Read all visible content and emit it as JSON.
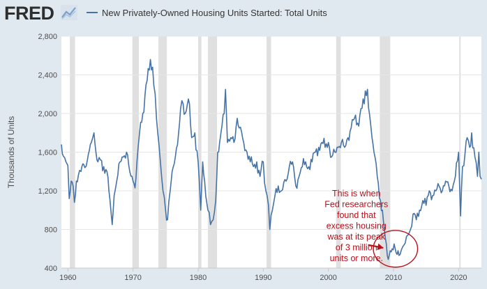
{
  "header": {
    "logo_text": "FRED",
    "legend_label": "New Privately-Owned Housing Units Started: Total Units"
  },
  "colors": {
    "series": "#4572a7",
    "recession": "#e0e0e0",
    "annotation": "#b8101a",
    "page_background": "#e1e9f0",
    "plot_background": "#ffffff"
  },
  "chart_data": {
    "type": "line",
    "title": "",
    "xlabel": "",
    "ylabel": "Thousands of Units",
    "xlim": [
      1959,
      2023.5
    ],
    "ylim": [
      400,
      2800
    ],
    "x_ticks": [
      1960,
      1970,
      1980,
      1990,
      2000,
      2010,
      2020
    ],
    "x_tick_labels": [
      "1960",
      "1970",
      "1980",
      "1990",
      "2000",
      "2010",
      "2020"
    ],
    "y_ticks": [
      400,
      800,
      1200,
      1600,
      2000,
      2400,
      2800
    ],
    "y_tick_labels": [
      "400",
      "800",
      "1,200",
      "1,600",
      "2,000",
      "2,400",
      "2,800"
    ],
    "grid": "horizontal",
    "legend_position": "top",
    "recessions": [
      [
        1960.3,
        1961.1
      ],
      [
        1969.9,
        1970.9
      ],
      [
        1973.9,
        1975.2
      ],
      [
        1980.0,
        1980.5
      ],
      [
        1981.5,
        1982.9
      ],
      [
        1990.5,
        1991.2
      ],
      [
        2001.2,
        2001.9
      ],
      [
        2007.9,
        2009.5
      ],
      [
        2020.1,
        2020.3
      ]
    ],
    "series": [
      {
        "name": "New Privately-Owned Housing Units Started: Total Units",
        "points": [
          [
            1959.0,
            1680
          ],
          [
            1959.3,
            1560
          ],
          [
            1959.7,
            1500
          ],
          [
            1960.0,
            1460
          ],
          [
            1960.2,
            1120
          ],
          [
            1960.5,
            1300
          ],
          [
            1960.8,
            1250
          ],
          [
            1961.0,
            1080
          ],
          [
            1961.3,
            1300
          ],
          [
            1961.6,
            1360
          ],
          [
            1962.0,
            1400
          ],
          [
            1962.3,
            1480
          ],
          [
            1962.6,
            1440
          ],
          [
            1963.0,
            1520
          ],
          [
            1963.3,
            1620
          ],
          [
            1963.6,
            1700
          ],
          [
            1964.0,
            1800
          ],
          [
            1964.3,
            1600
          ],
          [
            1964.6,
            1500
          ],
          [
            1965.0,
            1520
          ],
          [
            1965.5,
            1450
          ],
          [
            1966.0,
            1400
          ],
          [
            1966.3,
            1200
          ],
          [
            1966.6,
            1000
          ],
          [
            1966.8,
            850
          ],
          [
            1967.1,
            1150
          ],
          [
            1967.5,
            1300
          ],
          [
            1968.0,
            1500
          ],
          [
            1968.5,
            1550
          ],
          [
            1969.0,
            1600
          ],
          [
            1969.5,
            1400
          ],
          [
            1970.0,
            1300
          ],
          [
            1970.3,
            1230
          ],
          [
            1970.6,
            1500
          ],
          [
            1971.0,
            1800
          ],
          [
            1971.5,
            2000
          ],
          [
            1972.0,
            2300
          ],
          [
            1972.5,
            2450
          ],
          [
            1973.0,
            2480
          ],
          [
            1973.4,
            2200
          ],
          [
            1973.8,
            1800
          ],
          [
            1974.2,
            1500
          ],
          [
            1974.6,
            1200
          ],
          [
            1975.0,
            1000
          ],
          [
            1975.3,
            900
          ],
          [
            1975.7,
            1200
          ],
          [
            1976.0,
            1400
          ],
          [
            1976.5,
            1550
          ],
          [
            1977.0,
            1800
          ],
          [
            1977.3,
            2050
          ],
          [
            1977.7,
            2100
          ],
          [
            1978.0,
            2000
          ],
          [
            1978.5,
            2150
          ],
          [
            1979.0,
            1750
          ],
          [
            1979.5,
            1800
          ],
          [
            1980.0,
            1500
          ],
          [
            1980.4,
            1000
          ],
          [
            1980.7,
            1500
          ],
          [
            1981.0,
            1300
          ],
          [
            1981.5,
            1000
          ],
          [
            1981.9,
            850
          ],
          [
            1982.3,
            900
          ],
          [
            1982.7,
            1100
          ],
          [
            1983.0,
            1600
          ],
          [
            1983.3,
            1700
          ],
          [
            1983.5,
            1800
          ],
          [
            1984.0,
            2000
          ],
          [
            1984.2,
            2250
          ],
          [
            1984.5,
            1700
          ],
          [
            1985.0,
            1750
          ],
          [
            1985.5,
            1700
          ],
          [
            1986.0,
            1950
          ],
          [
            1986.3,
            1850
          ],
          [
            1986.7,
            1800
          ],
          [
            1987.0,
            1700
          ],
          [
            1987.5,
            1600
          ],
          [
            1988.0,
            1500
          ],
          [
            1988.5,
            1450
          ],
          [
            1989.0,
            1500
          ],
          [
            1989.5,
            1350
          ],
          [
            1990.0,
            1500
          ],
          [
            1990.4,
            1200
          ],
          [
            1990.8,
            1050
          ],
          [
            1991.0,
            800
          ],
          [
            1991.4,
            1000
          ],
          [
            1991.8,
            1150
          ],
          [
            1992.3,
            1250
          ],
          [
            1992.8,
            1200
          ],
          [
            1993.5,
            1300
          ],
          [
            1994.0,
            1450
          ],
          [
            1994.5,
            1500
          ],
          [
            1995.0,
            1250
          ],
          [
            1995.5,
            1350
          ],
          [
            1996.0,
            1450
          ],
          [
            1996.5,
            1500
          ],
          [
            1997.0,
            1450
          ],
          [
            1997.5,
            1500
          ],
          [
            1998.0,
            1600
          ],
          [
            1998.5,
            1650
          ],
          [
            1999.0,
            1700
          ],
          [
            1999.5,
            1650
          ],
          [
            2000.0,
            1700
          ],
          [
            2000.5,
            1550
          ],
          [
            2001.0,
            1600
          ],
          [
            2001.5,
            1650
          ],
          [
            2002.0,
            1700
          ],
          [
            2002.5,
            1650
          ],
          [
            2003.0,
            1750
          ],
          [
            2003.5,
            1850
          ],
          [
            2004.0,
            1950
          ],
          [
            2004.5,
            1900
          ],
          [
            2005.0,
            2050
          ],
          [
            2005.5,
            2100
          ],
          [
            2006.0,
            2250
          ],
          [
            2006.3,
            2000
          ],
          [
            2006.7,
            1750
          ],
          [
            2007.0,
            1600
          ],
          [
            2007.5,
            1350
          ],
          [
            2008.0,
            1100
          ],
          [
            2008.3,
            1000
          ],
          [
            2008.6,
            800
          ],
          [
            2008.9,
            650
          ],
          [
            2009.2,
            490
          ],
          [
            2009.5,
            580
          ],
          [
            2009.8,
            600
          ],
          [
            2010.1,
            650
          ],
          [
            2010.4,
            560
          ],
          [
            2010.7,
            580
          ],
          [
            2011.0,
            540
          ],
          [
            2011.4,
            620
          ],
          [
            2011.8,
            660
          ],
          [
            2012.2,
            740
          ],
          [
            2012.6,
            800
          ],
          [
            2013.0,
            960
          ],
          [
            2013.5,
            900
          ],
          [
            2014.0,
            1000
          ],
          [
            2014.5,
            1100
          ],
          [
            2015.0,
            1050
          ],
          [
            2015.5,
            1200
          ],
          [
            2016.0,
            1150
          ],
          [
            2016.5,
            1200
          ],
          [
            2017.0,
            1250
          ],
          [
            2017.5,
            1200
          ],
          [
            2018.0,
            1300
          ],
          [
            2018.5,
            1250
          ],
          [
            2019.0,
            1200
          ],
          [
            2019.5,
            1350
          ],
          [
            2020.0,
            1600
          ],
          [
            2020.3,
            940
          ],
          [
            2020.6,
            1450
          ],
          [
            2021.0,
            1600
          ],
          [
            2021.3,
            1750
          ],
          [
            2021.7,
            1650
          ],
          [
            2022.0,
            1800
          ],
          [
            2022.5,
            1550
          ],
          [
            2022.9,
            1350
          ],
          [
            2023.1,
            1600
          ],
          [
            2023.3,
            1350
          ],
          [
            2023.5,
            1320
          ]
        ]
      }
    ],
    "annotations": [
      {
        "text_lines": [
          "This is when",
          "Fed researchers",
          "found that",
          "excess housing",
          "was at its peak",
          "of 3 million",
          "units or more."
        ],
        "circle_center": [
          2010.3,
          600
        ],
        "circle_radius_x_years": 3.4,
        "circle_radius_y_units": 190
      }
    ]
  }
}
